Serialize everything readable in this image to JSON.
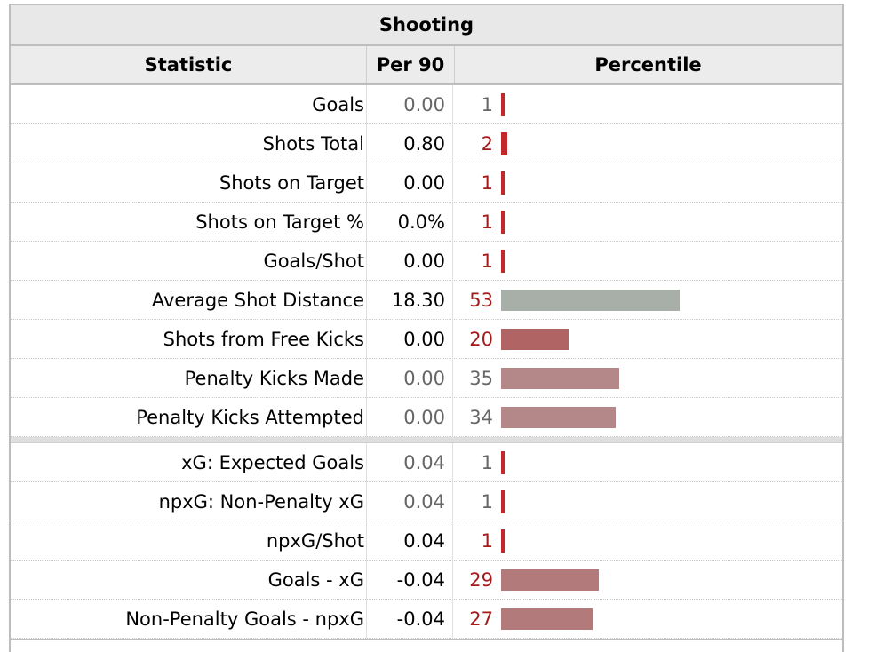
{
  "table": {
    "title": "Shooting",
    "headers": {
      "statistic": "Statistic",
      "per90": "Per 90",
      "percentile": "Percentile"
    },
    "colors": {
      "red_text": "#a31c1c",
      "grey_text": "#666666",
      "tick": "#c0282b",
      "bar_grey": "#a8aea8",
      "bar_red": "#b06464",
      "bar_pink": "#b48888",
      "bar_mauve": "#b27a7a"
    },
    "group1": [
      {
        "stat": "Goals",
        "per90": "0.00",
        "percentile": "1",
        "pctValue": 1,
        "muted": true,
        "barColor": "tick"
      },
      {
        "stat": "Shots Total",
        "per90": "0.80",
        "percentile": "2",
        "pctValue": 2,
        "muted": false,
        "barColor": "tick"
      },
      {
        "stat": "Shots on Target",
        "per90": "0.00",
        "percentile": "1",
        "pctValue": 1,
        "muted": false,
        "barColor": "tick"
      },
      {
        "stat": "Shots on Target %",
        "per90": "0.0%",
        "percentile": "1",
        "pctValue": 1,
        "muted": false,
        "barColor": "tick"
      },
      {
        "stat": "Goals/Shot",
        "per90": "0.00",
        "percentile": "1",
        "pctValue": 1,
        "muted": false,
        "barColor": "tick"
      },
      {
        "stat": "Average Shot Distance",
        "per90": "18.30",
        "percentile": "53",
        "pctValue": 53,
        "muted": false,
        "barColor": "bar_grey"
      },
      {
        "stat": "Shots from Free Kicks",
        "per90": "0.00",
        "percentile": "20",
        "pctValue": 20,
        "muted": false,
        "barColor": "bar_red"
      },
      {
        "stat": "Penalty Kicks Made",
        "per90": "0.00",
        "percentile": "35",
        "pctValue": 35,
        "muted": true,
        "barColor": "bar_pink"
      },
      {
        "stat": "Penalty Kicks Attempted",
        "per90": "0.00",
        "percentile": "34",
        "pctValue": 34,
        "muted": true,
        "barColor": "bar_pink"
      }
    ],
    "group2": [
      {
        "stat": "xG: Expected Goals",
        "per90": "0.04",
        "percentile": "1",
        "pctValue": 1,
        "muted": true,
        "barColor": "tick"
      },
      {
        "stat": "npxG: Non-Penalty xG",
        "per90": "0.04",
        "percentile": "1",
        "pctValue": 1,
        "muted": true,
        "barColor": "tick"
      },
      {
        "stat": "npxG/Shot",
        "per90": "0.04",
        "percentile": "1",
        "pctValue": 1,
        "muted": false,
        "barColor": "tick"
      },
      {
        "stat": "Goals - xG",
        "per90": "-0.04",
        "percentile": "29",
        "pctValue": 29,
        "muted": false,
        "barColor": "bar_mauve"
      },
      {
        "stat": "Non-Penalty Goals - npxG",
        "per90": "-0.04",
        "percentile": "27",
        "pctValue": 27,
        "muted": false,
        "barColor": "bar_mauve"
      }
    ]
  }
}
